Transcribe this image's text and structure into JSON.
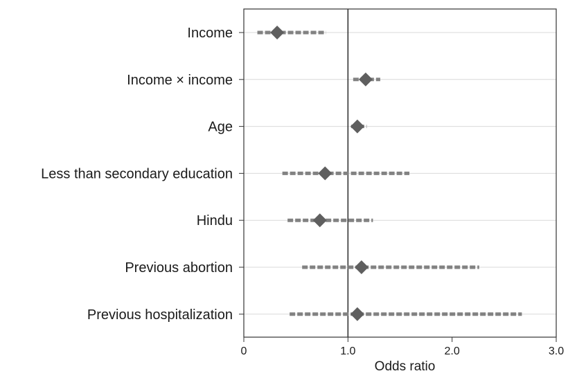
{
  "chart_data": {
    "type": "scatter",
    "subtype": "forest-plot",
    "xlabel": "Odds ratio",
    "ylabel": "",
    "xlim": [
      0,
      3.0
    ],
    "xticks": [
      {
        "value": 0,
        "label": "0"
      },
      {
        "value": 1.0,
        "label": "1.0"
      },
      {
        "value": 2.0,
        "label": "2.0"
      },
      {
        "value": 3.0,
        "label": "3.0"
      }
    ],
    "reference_line": 1.0,
    "grid": "horizontal",
    "categories": [
      "Income",
      "Income × income",
      "Age",
      "Less than secondary education",
      "Hindu",
      "Previous abortion",
      "Previous hospitalization"
    ],
    "series": [
      {
        "odds_ratio": [
          0.32,
          1.17,
          1.09,
          0.78,
          0.73,
          1.13,
          1.09
        ],
        "ci_lower": [
          0.13,
          1.05,
          1.03,
          0.37,
          0.42,
          0.56,
          0.44
        ],
        "ci_upper": [
          0.79,
          1.31,
          1.18,
          1.59,
          1.24,
          2.26,
          2.67
        ]
      }
    ],
    "colors": {
      "marker": "#5f5f5f",
      "ci": "#828282",
      "gridline": "#d9d9d9",
      "axis": "#333333",
      "reference": "#333333"
    }
  }
}
